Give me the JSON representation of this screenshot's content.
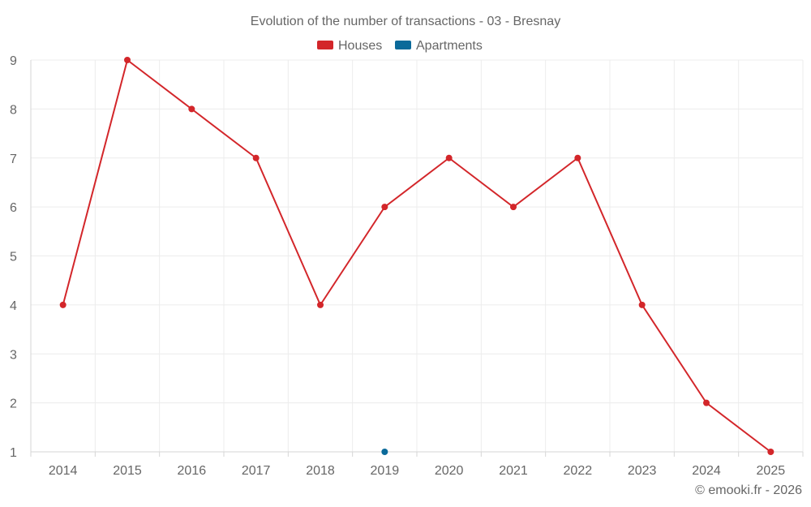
{
  "chart_data": {
    "type": "line",
    "title": "Evolution of the number of transactions - 03 - Bresnay",
    "categories": [
      "2014",
      "2015",
      "2016",
      "2017",
      "2018",
      "2019",
      "2020",
      "2021",
      "2022",
      "2023",
      "2024",
      "2025"
    ],
    "series": [
      {
        "name": "Houses",
        "color": "#d3262a",
        "values": [
          4,
          9,
          8,
          7,
          4,
          6,
          7,
          6,
          7,
          4,
          2,
          1
        ]
      },
      {
        "name": "Apartments",
        "color": "#0b6a9a",
        "values": [
          null,
          null,
          null,
          null,
          null,
          1,
          null,
          null,
          null,
          null,
          null,
          null
        ]
      }
    ],
    "ylim": [
      1,
      9
    ],
    "yticks": [
      "1",
      "2",
      "3",
      "4",
      "5",
      "6",
      "7",
      "8",
      "9"
    ],
    "xlabel": "",
    "ylabel": "",
    "grid": true,
    "legend_position": "top-center"
  },
  "credit": "© emooki.fr - 2026"
}
